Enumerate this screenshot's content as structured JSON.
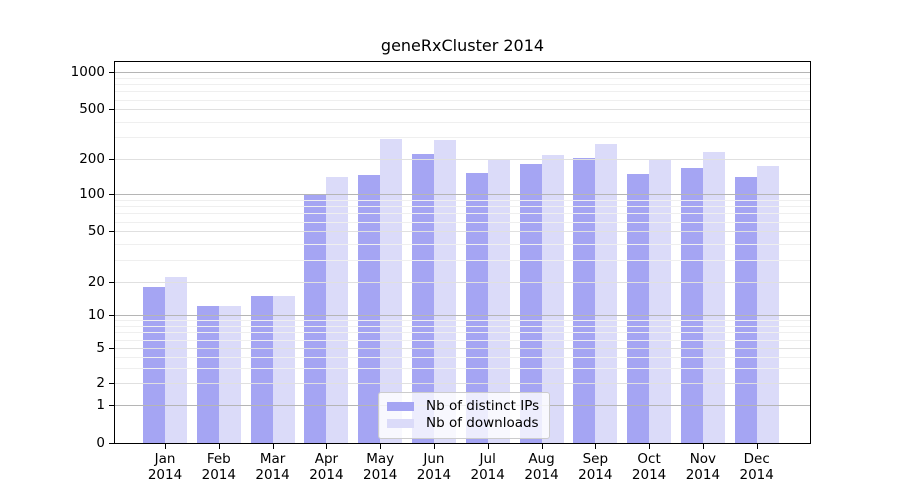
{
  "chart_data": {
    "type": "bar",
    "title": "geneRxCluster 2014",
    "categories": [
      "Jan",
      "Feb",
      "Mar",
      "Apr",
      "May",
      "Jun",
      "Jul",
      "Aug",
      "Sep",
      "Oct",
      "Nov",
      "Dec"
    ],
    "x_sublabel": "2014",
    "series": [
      {
        "name": "Nb of distinct IPs",
        "color": "#a5a5f3",
        "values": [
          18,
          12,
          15,
          98,
          146,
          220,
          151,
          183,
          204,
          149,
          167,
          140
        ]
      },
      {
        "name": "Nb of downloads",
        "color": "#dbdbf9",
        "values": [
          22,
          12,
          15,
          141,
          291,
          287,
          202,
          216,
          267,
          196,
          230,
          175
        ]
      }
    ],
    "y_ticks": [
      0,
      1,
      2,
      5,
      10,
      20,
      50,
      100,
      200,
      500,
      1000
    ],
    "y_scale": "log-like",
    "ylim": [
      0,
      1200
    ],
    "xlabel": "",
    "ylabel": "",
    "grid": true,
    "legend_position": "bottom-center",
    "colors": {
      "grid_decade": "#b5b5b5",
      "grid_labeled": "#e0e0e0",
      "grid_minor": "#efefef",
      "axis": "#000000",
      "background": "#ffffff"
    }
  }
}
